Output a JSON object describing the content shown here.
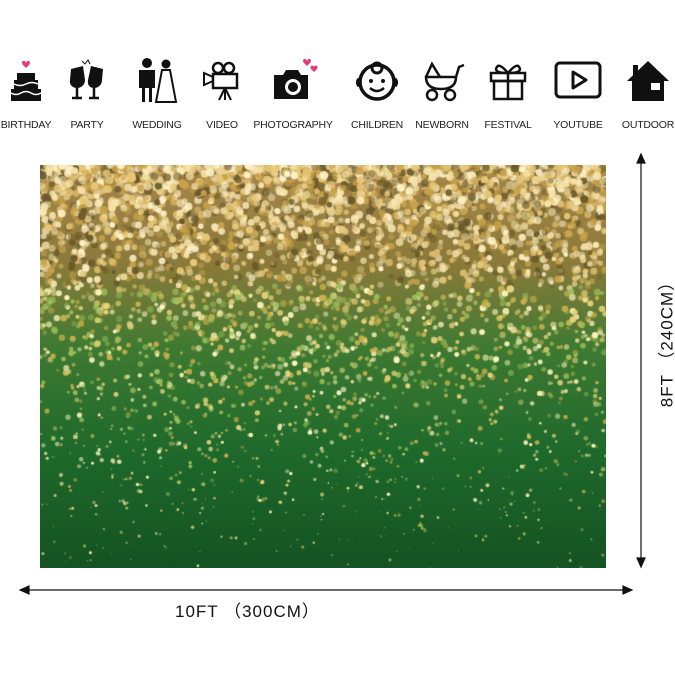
{
  "uses": [
    {
      "label": "BIRTHDAY",
      "icon": "cake-icon"
    },
    {
      "label": "PARTY",
      "icon": "champagne-glasses-icon"
    },
    {
      "label": "WEDDING",
      "icon": "bride-groom-icon"
    },
    {
      "label": "VIDEO",
      "icon": "video-camera-icon"
    },
    {
      "label": "PHOTOGRAPHY",
      "icon": "photo-camera-icon"
    },
    {
      "label": "CHILDREN",
      "icon": "child-face-icon"
    },
    {
      "label": "NEWBORN",
      "icon": "baby-stroller-icon"
    },
    {
      "label": "FESTIVAL",
      "icon": "gift-icon"
    },
    {
      "label": "YOUTUBE",
      "icon": "play-button-icon"
    },
    {
      "label": "OUTDOOR",
      "icon": "house-icon"
    }
  ],
  "dimensions": {
    "width": "10FT （300CM）",
    "height": "8FT （240CM）"
  },
  "colors": {
    "gold": "#c9a24a",
    "green": "#1e6b2e",
    "dark_green": "#145322",
    "heart": "#e23a7a"
  }
}
